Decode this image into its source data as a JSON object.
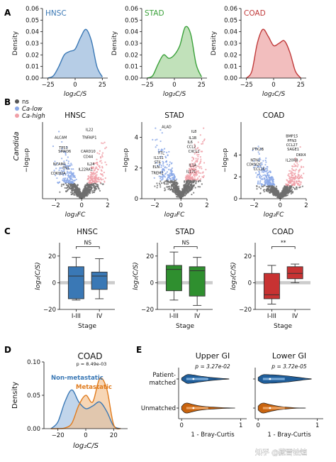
{
  "panel_labels": {
    "a": "A",
    "b": "B",
    "c": "C",
    "d": "D",
    "e": "E"
  },
  "watermark": "知乎 @藏雪铨煊",
  "chart_data": [
    {
      "panel": "A",
      "type": "area",
      "subplots": [
        {
          "name": "HNSC",
          "color": "#3a78b5",
          "fill": "#a9c4e2",
          "x": [
            -25,
            -20,
            -15,
            -10,
            -5,
            0,
            5,
            10,
            15,
            20,
            25
          ],
          "y": [
            0.0,
            0.002,
            0.01,
            0.02,
            0.023,
            0.025,
            0.035,
            0.042,
            0.032,
            0.01,
            0.001
          ]
        },
        {
          "name": "STAD",
          "color": "#3aa13a",
          "fill": "#b6dcae",
          "x": [
            -25,
            -20,
            -15,
            -10,
            -5,
            0,
            5,
            10,
            15,
            20,
            25
          ],
          "y": [
            0.0,
            0.002,
            0.012,
            0.02,
            0.017,
            0.02,
            0.028,
            0.044,
            0.038,
            0.012,
            0.001
          ]
        },
        {
          "name": "COAD",
          "color": "#c03a3a",
          "fill": "#f0b3b3",
          "x": [
            -25,
            -20,
            -15,
            -10,
            -5,
            0,
            5,
            10,
            15,
            20,
            25
          ],
          "y": [
            0.0,
            0.006,
            0.03,
            0.042,
            0.036,
            0.028,
            0.03,
            0.032,
            0.022,
            0.006,
            0.0
          ]
        }
      ],
      "xlabel": "log₂C/S",
      "ylabel": "Density",
      "xlim": [
        -30,
        30
      ],
      "ylim": [
        0,
        0.06
      ],
      "xticks": [
        "−25",
        "0",
        "25"
      ],
      "yticks": [
        "0.00",
        "0.01",
        "0.02",
        "0.03",
        "0.04",
        "0.05",
        "0.06"
      ]
    },
    {
      "panel": "B",
      "type": "scatter",
      "legend": [
        {
          "label": "ns",
          "color": "#555555"
        },
        {
          "label": "Ca-low",
          "color": "#8aa8e8"
        },
        {
          "label": "Ca-high",
          "color": "#f0a0a8"
        }
      ],
      "row_label": "Candida",
      "xlabel": "log₂FC",
      "ylabel": "−log₁₀p",
      "subplots": [
        {
          "name": "HNSC",
          "xlim": [
            -3,
            2
          ],
          "ylim": [
            0,
            6
          ],
          "xticks": [
            "−2",
            "0",
            "2"
          ],
          "xtick_vals": [
            -2,
            0,
            2
          ],
          "yticks": [],
          "labels": [
            {
              "text": "ALCAM",
              "x": -1.6,
              "y": 4.7
            },
            {
              "text": "TP53",
              "x": -1.4,
              "y": 3.9
            },
            {
              "text": "SMAD6",
              "x": -1.3,
              "y": 3.6
            },
            {
              "text": "NCAM1",
              "x": -1.7,
              "y": 2.6
            },
            {
              "text": "FN1",
              "x": -1.2,
              "y": 2.3
            },
            {
              "text": "CDKN2A",
              "x": -1.8,
              "y": 1.9
            },
            {
              "text": "IL22",
              "x": 0.6,
              "y": 5.3
            },
            {
              "text": "TNFAIP1",
              "x": 0.6,
              "y": 4.7
            },
            {
              "text": "CARD10",
              "x": 0.5,
              "y": 3.6
            },
            {
              "text": "CD44",
              "x": 0.5,
              "y": 3.2
            },
            {
              "text": "IL24",
              "x": 0.7,
              "y": 2.6
            },
            {
              "text": "IL22RA1",
              "x": 0.3,
              "y": 2.2
            }
          ]
        },
        {
          "name": "STAD",
          "xlim": [
            -3,
            2
          ],
          "ylim": [
            0,
            5
          ],
          "xticks": [
            "−2",
            "0",
            "2"
          ],
          "xtick_vals": [
            -2,
            0,
            2
          ],
          "yticks": [
            "0",
            "2",
            "4"
          ],
          "ytick_vals": [
            0,
            2,
            4
          ],
          "labels": [
            {
              "text": "ALAD",
              "x": -1.1,
              "y": 4.6
            },
            {
              "text": "IL8",
              "x": 1.0,
              "y": 4.3
            },
            {
              "text": "IL1B",
              "x": 0.9,
              "y": 3.9
            },
            {
              "text": "IL6",
              "x": 0.7,
              "y": 3.6
            },
            {
              "text": "CCL2",
              "x": 0.8,
              "y": 3.3
            },
            {
              "text": "CXCL1",
              "x": 1.0,
              "y": 3.0
            },
            {
              "text": "FTL",
              "x": -1.5,
              "y": 2.9
            },
            {
              "text": "IL1S1",
              "x": -1.7,
              "y": 2.6
            },
            {
              "text": "ST6",
              "x": -1.8,
              "y": 2.3
            },
            {
              "text": "ELN",
              "x": -1.9,
              "y": 2.0
            },
            {
              "text": "TREM2",
              "x": -1.8,
              "y": 1.6
            },
            {
              "text": "IL1A",
              "x": 0.9,
              "y": 2.1
            },
            {
              "text": "IL17C",
              "x": 0.8,
              "y": 1.7
            }
          ]
        },
        {
          "name": "COAD",
          "xlim": [
            -3,
            2
          ],
          "ylim": [
            0,
            7
          ],
          "xticks": [
            "−2",
            "0",
            "2"
          ],
          "xtick_vals": [
            -2,
            0,
            2
          ],
          "yticks": [
            "0",
            "2",
            "4"
          ],
          "ytick_vals": [
            0,
            2,
            4
          ],
          "labels": [
            {
              "text": "BMP15",
              "x": 0.9,
              "y": 5.6
            },
            {
              "text": "PFN3",
              "x": 0.9,
              "y": 5.2
            },
            {
              "text": "CCL27",
              "x": 0.9,
              "y": 4.8
            },
            {
              "text": "PTK2B",
              "x": -1.7,
              "y": 4.4
            },
            {
              "text": "SAGE1",
              "x": 1.0,
              "y": 4.4
            },
            {
              "text": "DKK4",
              "x": 1.6,
              "y": 3.9
            },
            {
              "text": "NTN1",
              "x": -1.9,
              "y": 3.4
            },
            {
              "text": "CDKN2C",
              "x": -2.0,
              "y": 3.0
            },
            {
              "text": "IL20RB",
              "x": 0.9,
              "y": 3.4
            },
            {
              "text": "CCL16",
              "x": -1.6,
              "y": 2.6
            }
          ]
        }
      ]
    },
    {
      "panel": "C",
      "type": "box",
      "xlabel": "Stage",
      "ylabel": "log₂(C/S)",
      "ylim": [
        -20,
        30
      ],
      "yticks": [
        "−20",
        "0",
        "20"
      ],
      "ytick_vals": [
        -20,
        0,
        20
      ],
      "categories": [
        "I-III",
        "IV"
      ],
      "subplots": [
        {
          "name": "HNSC",
          "color": "#3a78b5",
          "sig": "NS",
          "boxes": [
            {
              "whisker_low": -13,
              "q1": -12,
              "median": 5,
              "q3": 12,
              "whisker_high": 19
            },
            {
              "whisker_low": -12,
              "q1": -5,
              "median": 5,
              "q3": 8,
              "whisker_high": 18
            }
          ]
        },
        {
          "name": "STAD",
          "color": "#2f8f2f",
          "sig": "NS",
          "boxes": [
            {
              "whisker_low": -13,
              "q1": -6,
              "median": 10,
              "q3": 13,
              "whisker_high": 23
            },
            {
              "whisker_low": -17,
              "q1": -10,
              "median": 9,
              "q3": 12,
              "whisker_high": 19
            }
          ]
        },
        {
          "name": "COAD",
          "color": "#c83232",
          "sig": "**",
          "boxes": [
            {
              "whisker_low": -16,
              "q1": -12,
              "median": -9,
              "q3": 7,
              "whisker_high": 13
            },
            {
              "whisker_low": 0,
              "q1": 3,
              "median": 7,
              "q3": 12,
              "whisker_high": 14
            }
          ]
        }
      ]
    },
    {
      "panel": "D",
      "type": "area",
      "title": "COAD",
      "pvalue": "p = 8.49e-03",
      "xlabel": "log₂C/S",
      "ylabel": "Density",
      "xlim": [
        -30,
        30
      ],
      "ylim": [
        0,
        0.1
      ],
      "xticks": [
        "−20",
        "0",
        "20"
      ],
      "xtick_vals": [
        -20,
        0,
        20
      ],
      "yticks": [
        "0.00",
        "0.05",
        "0.10"
      ],
      "ytick_vals": [
        0,
        0.05,
        0.1
      ],
      "x": [
        -25,
        -20,
        -15,
        -10,
        -5,
        0,
        5,
        10,
        15,
        20,
        25
      ],
      "series": [
        {
          "name": "Non-metastatic",
          "color": "#3a78b5",
          "fill": "#9fbfe0",
          "values": [
            0.0,
            0.01,
            0.04,
            0.058,
            0.04,
            0.03,
            0.034,
            0.04,
            0.026,
            0.004,
            0.0
          ]
        },
        {
          "name": "Metastatic",
          "color": "#e07b1d",
          "fill": "#f2c08e",
          "values": [
            0.0,
            0.0,
            0.001,
            0.008,
            0.035,
            0.05,
            0.04,
            0.075,
            0.06,
            0.006,
            0.0
          ]
        }
      ],
      "overlap_fill": "#b4b098"
    },
    {
      "panel": "E",
      "type": "violin",
      "xlabel": "1 - Bray-Curtis",
      "xlim": [
        0,
        1.1
      ],
      "xticks": [
        "0",
        "1"
      ],
      "xtick_vals": [
        0,
        1
      ],
      "categories": [
        "Patient-\nmatched",
        "Unmatched"
      ],
      "category_lines": [
        "Patient-",
        "matched"
      ],
      "subplots": [
        {
          "name": "Upper GI",
          "pvalue": "p = 3.27e-02",
          "violins": [
            {
              "group": "Patient-matched",
              "color": "#1f5d99",
              "light": "#7fb0de",
              "x": [
                0.0,
                0.05,
                0.1,
                0.2,
                0.3,
                0.4,
                0.5,
                0.6,
                0.7,
                0.8
              ],
              "width": [
                0.2,
                0.6,
                0.9,
                0.8,
                0.6,
                0.45,
                0.3,
                0.2,
                0.1,
                0.02
              ]
            },
            {
              "group": "Unmatched",
              "color": "#c8630e",
              "light": "#f0a86a",
              "x": [
                0.0,
                0.05,
                0.1,
                0.2,
                0.3,
                0.4,
                0.5,
                0.6,
                0.7,
                0.8,
                0.9
              ],
              "width": [
                0.3,
                0.9,
                1.0,
                0.7,
                0.45,
                0.3,
                0.22,
                0.14,
                0.08,
                0.04,
                0.01
              ]
            }
          ]
        },
        {
          "name": "Lower GI",
          "pvalue": "p = 3.72e-05",
          "violins": [
            {
              "group": "Patient-matched",
              "color": "#1f5d99",
              "light": "#7fb0de",
              "x": [
                0.0,
                0.05,
                0.1,
                0.2,
                0.3,
                0.4,
                0.5,
                0.6,
                0.7,
                0.8,
                0.9
              ],
              "width": [
                0.3,
                0.7,
                0.9,
                0.85,
                0.8,
                0.7,
                0.6,
                0.45,
                0.3,
                0.15,
                0.03
              ]
            },
            {
              "group": "Unmatched",
              "color": "#c8630e",
              "light": "#f0a86a",
              "x": [
                0.0,
                0.05,
                0.1,
                0.2,
                0.3,
                0.4,
                0.5,
                0.6,
                0.7,
                0.8
              ],
              "width": [
                0.4,
                0.9,
                1.0,
                0.7,
                0.45,
                0.28,
                0.16,
                0.08,
                0.03,
                0.01
              ]
            }
          ]
        }
      ]
    }
  ]
}
